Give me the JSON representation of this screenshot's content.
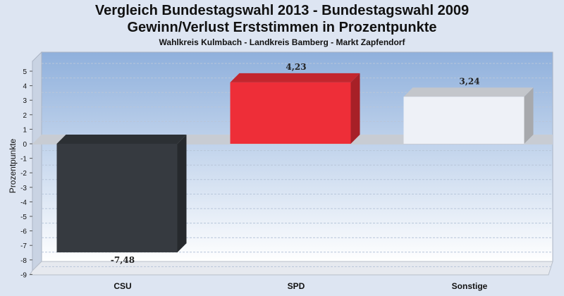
{
  "chart_data": {
    "type": "bar",
    "title": "Vergleich Bundestagswahl 2013 - Bundestagswahl 2009",
    "title_line2": "Gewinn/Verlust Erststimmen in Prozentpunkte",
    "subtitle": "Wahlkreis Kulmbach - Landkreis Bamberg - Markt Zapfendorf",
    "ylabel": "Prozentpunkte",
    "xlabel": "",
    "ylim": [
      -9,
      5
    ],
    "yticks": [
      5,
      4,
      3,
      2,
      1,
      0,
      -1,
      -2,
      -3,
      -4,
      -5,
      -6,
      -7,
      -8,
      -9
    ],
    "ytick_labels": [
      "5",
      "4",
      "3",
      "2",
      "1",
      "0",
      "-1",
      "-2",
      "-3",
      "-4",
      "-5",
      "-6",
      "-7",
      "-8",
      "-9"
    ],
    "categories": [
      "CSU",
      "SPD",
      "Sonstige"
    ],
    "values": [
      -7.48,
      4.23,
      3.24
    ],
    "value_labels": [
      "-7,48",
      "4,23",
      "3,24"
    ],
    "colors": [
      "#363a40",
      "#ee2e38",
      "#eef1f7"
    ],
    "grid": true
  }
}
